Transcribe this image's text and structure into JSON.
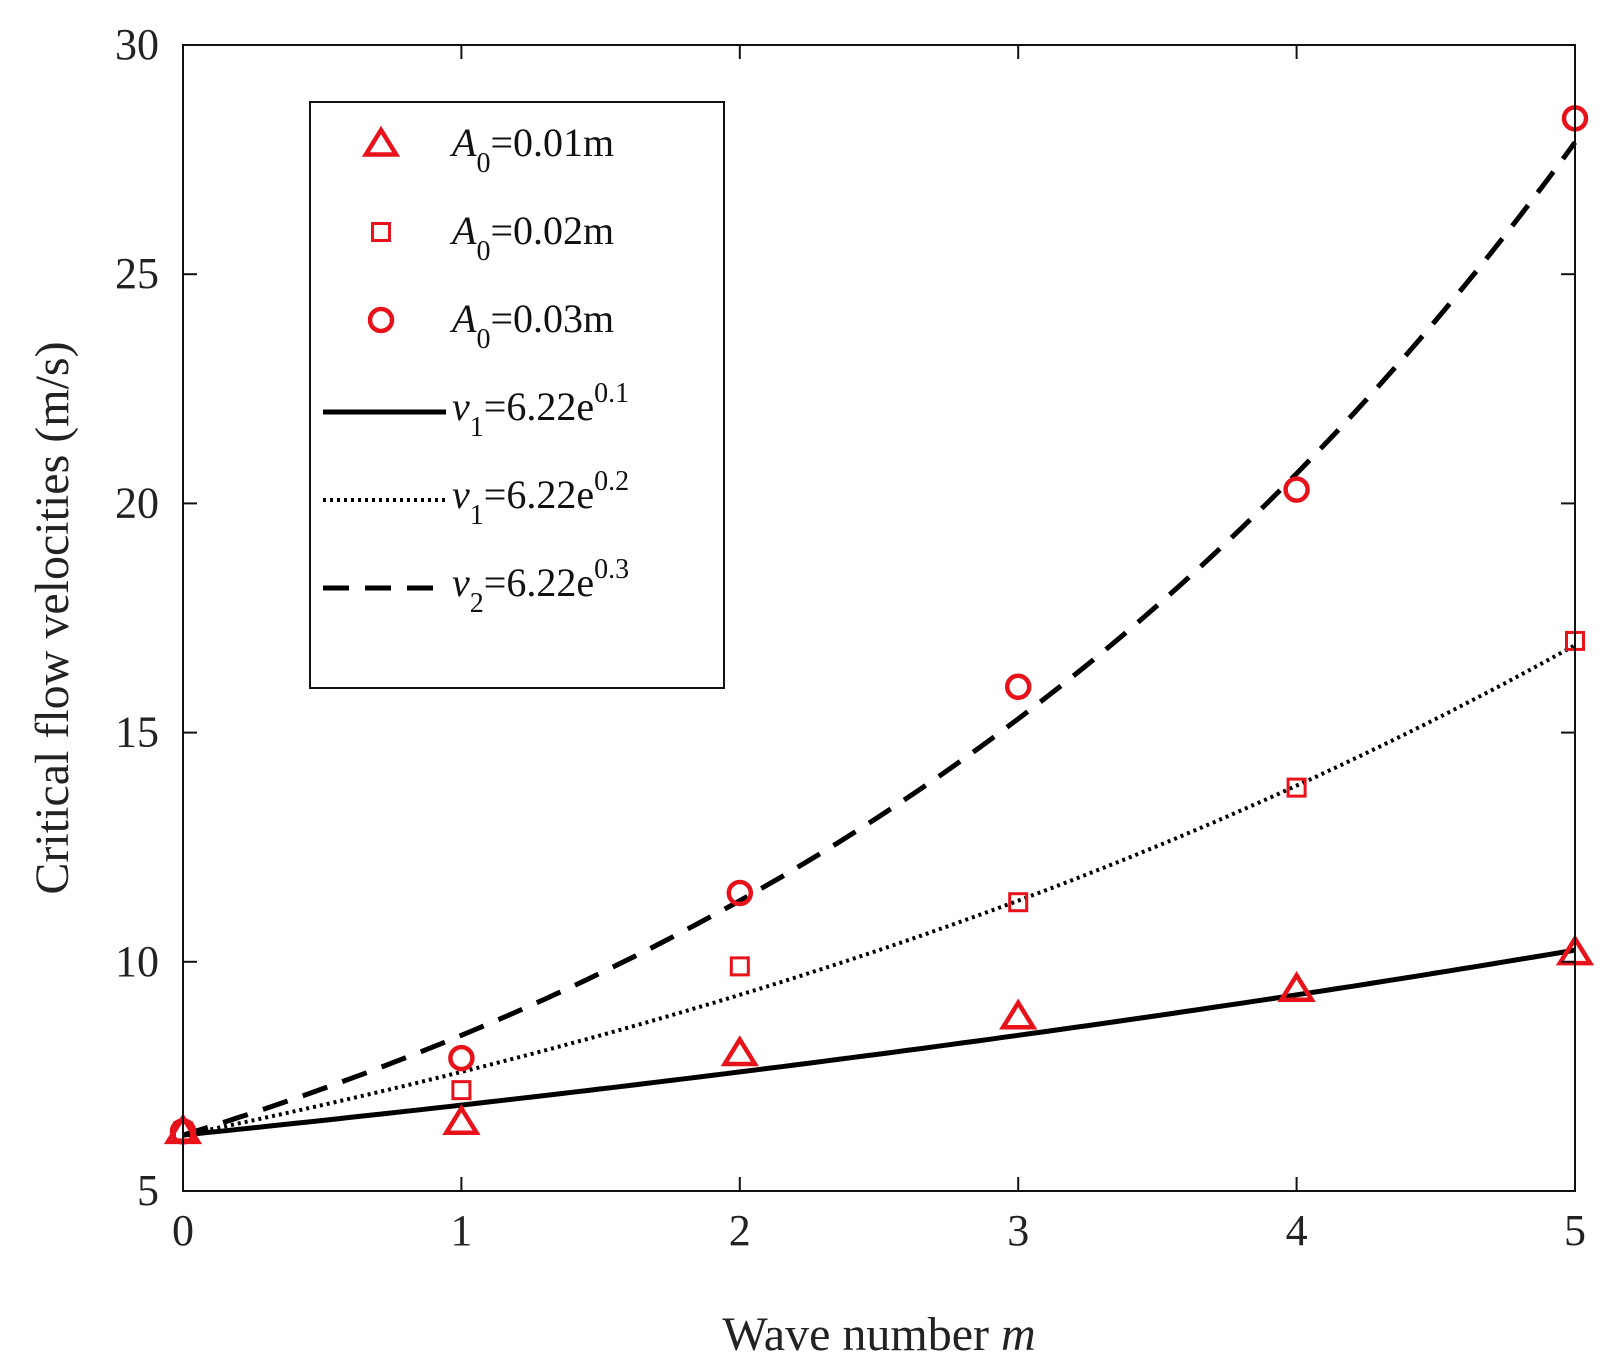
{
  "chart_data": {
    "type": "scatter",
    "title": "",
    "xlabel": "Wave number",
    "xlabel_var": "m",
    "ylabel": "Critical flow velocities (m/s)",
    "xlim": [
      0,
      5
    ],
    "ylim": [
      5,
      30
    ],
    "xticks": [
      "0",
      "1",
      "2",
      "3",
      "4",
      "5"
    ],
    "yticks": [
      "5",
      "10",
      "15",
      "20",
      "25",
      "30"
    ],
    "grid": false,
    "legend_position": "top-left",
    "series": [
      {
        "name": "A0=0.01m",
        "label": {
          "var": "A",
          "sub": "0",
          "rest": "=0.01m"
        },
        "kind": "markers",
        "marker": "triangle",
        "color": "#e8121b",
        "x": [
          0,
          1,
          2,
          3,
          4,
          5
        ],
        "y": [
          6.3,
          6.5,
          8.0,
          8.8,
          9.4,
          10.2
        ]
      },
      {
        "name": "A0=0.02m",
        "label": {
          "var": "A",
          "sub": "0",
          "rest": "=0.02m"
        },
        "kind": "markers",
        "marker": "square",
        "color": "#e8121b",
        "x": [
          0,
          1,
          2,
          3,
          4,
          5
        ],
        "y": [
          6.3,
          7.2,
          9.9,
          11.3,
          13.8,
          17.0
        ]
      },
      {
        "name": "A0=0.03m",
        "label": {
          "var": "A",
          "sub": "0",
          "rest": "=0.03m"
        },
        "kind": "markers",
        "marker": "circle",
        "color": "#e8121b",
        "x": [
          0,
          1,
          2,
          3,
          4,
          5
        ],
        "y": [
          6.3,
          7.9,
          11.5,
          16.0,
          20.3,
          28.4
        ]
      },
      {
        "name": "v1=6.22e^0.1",
        "label": {
          "var": "v",
          "sub": "1",
          "rest": "=6.22e",
          "sup": "0.1"
        },
        "kind": "line",
        "dash": "solid",
        "color": "#000000",
        "formula": {
          "a": 6.22,
          "b": 0.1
        }
      },
      {
        "name": "v1=6.22e^0.2",
        "label": {
          "var": "v",
          "sub": "1",
          "rest": "=6.22e",
          "sup": "0.2"
        },
        "kind": "line",
        "dash": "dotted",
        "color": "#000000",
        "formula": {
          "a": 6.22,
          "b": 0.2
        }
      },
      {
        "name": "v2=6.22e^0.3",
        "label": {
          "var": "v",
          "sub": "2",
          "rest": "=6.22e",
          "sup": "0.3"
        },
        "kind": "line",
        "dash": "dashed",
        "color": "#000000",
        "formula": {
          "a": 6.22,
          "b": 0.3
        }
      }
    ]
  }
}
